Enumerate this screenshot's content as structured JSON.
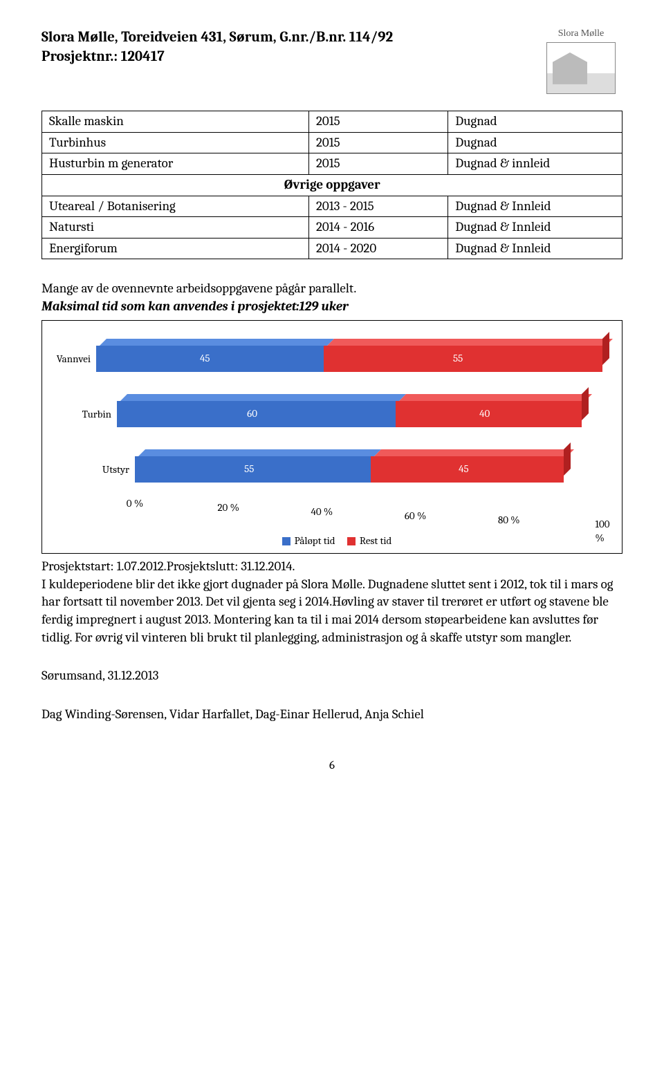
{
  "header": {
    "line1": "Slora Mølle, Toreidveien 431, Sørum, G.nr./B.nr. 114/92",
    "line2": "Prosjektnr.: 120417",
    "logo_text": "Slora Mølle"
  },
  "table1": {
    "rows": [
      [
        "Skalle maskin",
        "2015",
        "Dugnad"
      ],
      [
        "Turbinhus",
        "2015",
        "Dugnad"
      ],
      [
        "Husturbin m generator",
        "2015",
        "Dugnad & innleid"
      ]
    ]
  },
  "section_header": "Øvrige oppgaver",
  "table2": {
    "rows": [
      [
        "Uteareal / Botanisering",
        "2013 - 2015",
        "Dugnad & Innleid"
      ],
      [
        "Natursti",
        "2014 - 2016",
        "Dugnad & Innleid"
      ],
      [
        "Energiforum",
        "2014 - 2020",
        "Dugnad & Innleid"
      ]
    ]
  },
  "body_line1": "Mange av de ovennevnte arbeidsoppgavene pågår parallelt.",
  "body_line2": "Maksimal tid som kan anvendes i prosjektet:129 uker",
  "chart": {
    "categories": [
      "Vannvei",
      "Turbin",
      "Utstyr"
    ],
    "series": [
      {
        "name": "Påløpt tid",
        "color": "#3a6fc9",
        "color_top": "#5a8de0",
        "color_side": "#2a5299"
      },
      {
        "name": "Rest tid",
        "color": "#e03131",
        "color_top": "#f05a5a",
        "color_side": "#b02020"
      }
    ],
    "data": [
      {
        "elapsed": 45,
        "rest": 55
      },
      {
        "elapsed": 60,
        "rest": 40
      },
      {
        "elapsed": 55,
        "rest": 45
      }
    ],
    "x_ticks": [
      "0 %",
      "20 %",
      "40 %",
      "60 %",
      "80 %",
      "100 %"
    ],
    "x_positions": [
      0,
      20,
      40,
      60,
      80,
      100
    ],
    "legend_labels": [
      "Påløpt tid",
      "Rest tid"
    ]
  },
  "para": "Prosjektstart: 1.07.2012.Prosjektslutt: 31.12.2014.\nI kuldeperiodene blir det ikke gjort dugnader på Slora Mølle. Dugnadene sluttet sent i 2012, tok til i mars og har fortsatt til november 2013. Det vil gjenta seg i 2014.Høvling av staver til trerøret er utført og stavene ble ferdig impregnert i august 2013. Montering kan ta til i mai 2014 dersom støpearbeidene kan avsluttes før tidlig. For øvrig vil vinteren bli brukt til planlegging, administrasjon og å skaffe utstyr som mangler.",
  "sig1": "Sørumsand, 31.12.2013",
  "sig2": "Dag Winding-Sørensen, Vidar Harfallet, Dag-Einar Hellerud, Anja Schiel",
  "page": "6"
}
